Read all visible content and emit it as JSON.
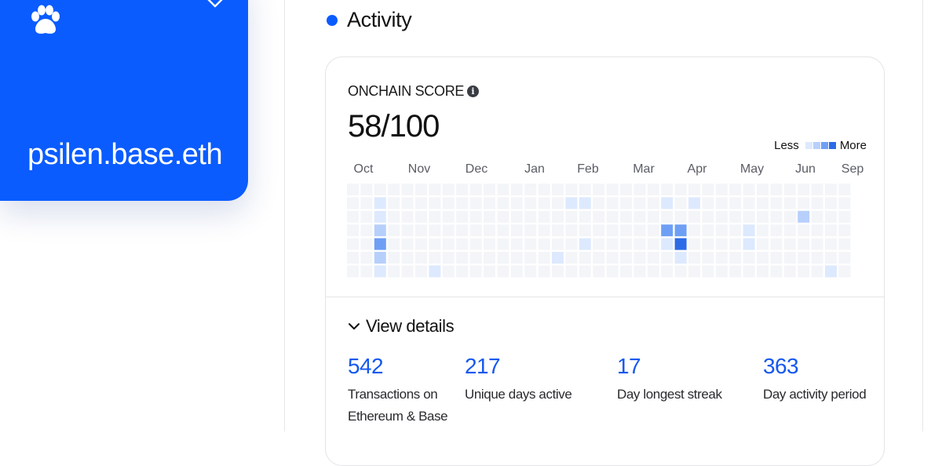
{
  "profile": {
    "name": "psilen.base.eth",
    "icons": {
      "logo": "paw-icon",
      "menu": "chevron-down-icon"
    }
  },
  "activity": {
    "title": "Activity",
    "score_label": "ONCHAIN SCORE",
    "score_value": "58/100",
    "legend": {
      "less": "Less",
      "more": "More"
    },
    "months": [
      "Oct",
      "Nov",
      "Dec",
      "Jan",
      "Feb",
      "Mar",
      "Apr",
      "May",
      "Jun",
      "Sep"
    ],
    "colors": {
      "brand": "#0a5cff",
      "stat": "#1558ee",
      "empty": "#f4f5f8",
      "l1": "#dde9fe",
      "l2": "#b7d0fb",
      "l3": "#6f9ff5",
      "l4": "#2c6be6"
    },
    "view_details": "View details",
    "stats": [
      {
        "value": "542",
        "label": "Transactions on Ethereum & Base"
      },
      {
        "value": "217",
        "label": "Unique days active"
      },
      {
        "value": "17",
        "label": "Day longest streak"
      },
      {
        "value": "363",
        "label": "Day activity period"
      }
    ]
  },
  "contribution_grid": {
    "rows": 7,
    "weeks": 37,
    "active_cells": [
      {
        "week": 2,
        "day": 1,
        "level": 1
      },
      {
        "week": 2,
        "day": 2,
        "level": 1
      },
      {
        "week": 2,
        "day": 3,
        "level": 2
      },
      {
        "week": 2,
        "day": 4,
        "level": 3
      },
      {
        "week": 2,
        "day": 5,
        "level": 2
      },
      {
        "week": 2,
        "day": 6,
        "level": 1
      },
      {
        "week": 6,
        "day": 6,
        "level": 1
      },
      {
        "week": 15,
        "day": 5,
        "level": 1
      },
      {
        "week": 16,
        "day": 1,
        "level": 1
      },
      {
        "week": 17,
        "day": 1,
        "level": 1
      },
      {
        "week": 17,
        "day": 4,
        "level": 1
      },
      {
        "week": 23,
        "day": 1,
        "level": 1
      },
      {
        "week": 23,
        "day": 3,
        "level": 3
      },
      {
        "week": 23,
        "day": 4,
        "level": 1
      },
      {
        "week": 24,
        "day": 3,
        "level": 3
      },
      {
        "week": 24,
        "day": 4,
        "level": 4
      },
      {
        "week": 24,
        "day": 5,
        "level": 1
      },
      {
        "week": 25,
        "day": 1,
        "level": 1
      },
      {
        "week": 29,
        "day": 3,
        "level": 1
      },
      {
        "week": 29,
        "day": 4,
        "level": 1
      },
      {
        "week": 33,
        "day": 2,
        "level": 2
      },
      {
        "week": 35,
        "day": 6,
        "level": 1
      },
      {
        "week": 37,
        "day": 3,
        "level": 1
      },
      {
        "week": 37,
        "day": 4,
        "level": 1
      }
    ]
  }
}
